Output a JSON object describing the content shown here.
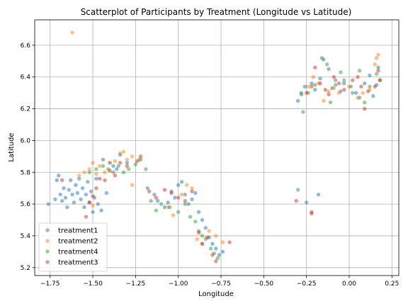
{
  "chart_data": {
    "type": "scatter",
    "title": "Scatterplot of Participants by Treatment (Longitude vs Latitude)",
    "xlabel": "Longitude",
    "ylabel": "Latitude",
    "xlim": [
      -1.84,
      0.29
    ],
    "ylim": [
      5.15,
      6.76
    ],
    "xticks": [
      -1.75,
      -1.5,
      -1.25,
      -1.0,
      -0.75,
      -0.5,
      -0.25,
      0.0,
      0.25
    ],
    "xtick_labels": [
      "−1.75",
      "−1.50",
      "−1.25",
      "−1.00",
      "−0.75",
      "−0.50",
      "−0.25",
      "0.00",
      "0.25"
    ],
    "yticks": [
      5.2,
      5.4,
      5.6,
      5.8,
      6.0,
      6.2,
      6.4,
      6.6
    ],
    "ytick_labels": [
      "5.2",
      "5.4",
      "5.6",
      "5.8",
      "6.0",
      "6.2",
      "6.4",
      "6.6"
    ],
    "grid": true,
    "legend_position": "lower-left",
    "series": [
      {
        "name": "treatment1",
        "color": "#1f77b4",
        "points": [
          [
            -1.76,
            5.6
          ],
          [
            -1.72,
            5.63
          ],
          [
            -1.71,
            5.75
          ],
          [
            -1.7,
            5.78
          ],
          [
            -1.69,
            5.66
          ],
          [
            -1.68,
            5.62
          ],
          [
            -1.67,
            5.7
          ],
          [
            -1.66,
            5.64
          ],
          [
            -1.65,
            5.58
          ],
          [
            -1.64,
            5.69
          ],
          [
            -1.63,
            5.75
          ],
          [
            -1.62,
            5.66
          ],
          [
            -1.61,
            5.61
          ],
          [
            -1.6,
            5.72
          ],
          [
            -1.59,
            5.67
          ],
          [
            -1.58,
            5.76
          ],
          [
            -1.57,
            5.63
          ],
          [
            -1.56,
            5.7
          ],
          [
            -1.55,
            5.58
          ],
          [
            -1.54,
            5.66
          ],
          [
            -1.53,
            5.74
          ],
          [
            -1.52,
            5.61
          ],
          [
            -1.51,
            5.68
          ],
          [
            -1.5,
            5.55
          ],
          [
            -1.49,
            5.64
          ],
          [
            -1.48,
            5.76
          ],
          [
            -1.47,
            5.6
          ],
          [
            -1.45,
            5.56
          ],
          [
            -1.44,
            5.88
          ],
          [
            -1.42,
            5.67
          ],
          [
            -1.4,
            5.86
          ],
          [
            -1.38,
            5.84
          ],
          [
            -1.36,
            5.82
          ],
          [
            -1.34,
            5.91
          ],
          [
            -1.3,
            5.86
          ],
          [
            -1.18,
            5.7
          ],
          [
            -1.14,
            5.66
          ],
          [
            -1.12,
            5.62
          ],
          [
            -1.08,
            5.58
          ],
          [
            -1.06,
            5.61
          ],
          [
            -1.04,
            5.68
          ],
          [
            -1.02,
            5.64
          ],
          [
            -1.0,
            5.72
          ],
          [
            -0.98,
            5.74
          ],
          [
            -0.96,
            5.66
          ],
          [
            -0.94,
            5.6
          ],
          [
            -0.92,
            5.63
          ],
          [
            -0.9,
            5.67
          ],
          [
            -0.88,
            5.55
          ],
          [
            -0.86,
            5.5
          ],
          [
            -0.84,
            5.45
          ],
          [
            -0.82,
            5.39
          ],
          [
            -0.8,
            5.35
          ],
          [
            -0.78,
            5.32
          ],
          [
            -0.76,
            5.28
          ],
          [
            -0.74,
            5.3
          ],
          [
            -0.18,
            5.66
          ],
          [
            -0.25,
            5.61
          ],
          [
            -0.3,
            6.25
          ],
          [
            -0.28,
            6.3
          ],
          [
            -0.26,
            6.34
          ],
          [
            -0.22,
            6.36
          ],
          [
            -0.2,
            6.32
          ],
          [
            -0.17,
            6.39
          ],
          [
            -0.15,
            6.51
          ],
          [
            -0.12,
            6.45
          ],
          [
            -0.1,
            6.33
          ],
          [
            -0.08,
            6.38
          ],
          [
            -0.05,
            6.31
          ],
          [
            -0.03,
            6.36
          ],
          [
            0.01,
            6.34
          ],
          [
            0.04,
            6.3
          ],
          [
            0.06,
            6.27
          ],
          [
            0.09,
            6.36
          ],
          [
            0.12,
            6.41
          ],
          [
            0.14,
            6.28
          ],
          [
            0.16,
            6.35
          ],
          [
            0.17,
            6.46
          ]
        ]
      },
      {
        "name": "treatment2",
        "color": "#ff7f0e",
        "points": [
          [
            -1.62,
            6.68
          ],
          [
            -1.58,
            5.78
          ],
          [
            -1.55,
            5.8
          ],
          [
            -1.52,
            5.82
          ],
          [
            -1.5,
            5.86
          ],
          [
            -1.48,
            5.79
          ],
          [
            -1.46,
            5.84
          ],
          [
            -1.43,
            5.8
          ],
          [
            -1.4,
            5.86
          ],
          [
            -1.37,
            5.87
          ],
          [
            -1.34,
            5.92
          ],
          [
            -1.32,
            5.93
          ],
          [
            -1.3,
            5.88
          ],
          [
            -1.27,
            5.9
          ],
          [
            -1.23,
            5.88
          ],
          [
            -1.27,
            5.72
          ],
          [
            -1.5,
            5.59
          ],
          [
            -1.06,
            5.58
          ],
          [
            -1.03,
            5.53
          ],
          [
            -0.98,
            5.66
          ],
          [
            -0.95,
            5.72
          ],
          [
            -0.92,
            5.7
          ],
          [
            -0.89,
            5.38
          ],
          [
            -0.86,
            5.35
          ],
          [
            -0.82,
            5.43
          ],
          [
            -0.78,
            5.4
          ],
          [
            -0.74,
            5.36
          ],
          [
            -0.24,
            6.34
          ],
          [
            -0.21,
            6.4
          ],
          [
            -0.18,
            6.36
          ],
          [
            -0.15,
            6.25
          ],
          [
            -0.12,
            6.31
          ],
          [
            -0.09,
            6.33
          ],
          [
            -0.06,
            6.3
          ],
          [
            0.0,
            6.34
          ],
          [
            0.05,
            6.27
          ],
          [
            0.08,
            6.3
          ],
          [
            0.12,
            6.32
          ],
          [
            0.15,
            6.48
          ],
          [
            0.16,
            6.52
          ],
          [
            0.17,
            6.54
          ]
        ]
      },
      {
        "name": "treatment4",
        "color": "#2ca02c",
        "points": [
          [
            -1.52,
            5.8
          ],
          [
            -1.48,
            5.82
          ],
          [
            -1.44,
            5.84
          ],
          [
            -1.41,
            5.82
          ],
          [
            -1.38,
            5.8
          ],
          [
            -1.35,
            5.84
          ],
          [
            -1.32,
            5.8
          ],
          [
            -1.29,
            5.82
          ],
          [
            -1.25,
            5.85
          ],
          [
            -1.22,
            5.88
          ],
          [
            -1.19,
            5.82
          ],
          [
            -1.16,
            5.62
          ],
          [
            -1.13,
            5.56
          ],
          [
            -1.1,
            5.6
          ],
          [
            -1.05,
            5.58
          ],
          [
            -1.0,
            5.55
          ],
          [
            -0.96,
            5.6
          ],
          [
            -0.93,
            5.52
          ],
          [
            -0.9,
            5.49
          ],
          [
            -0.88,
            5.43
          ],
          [
            -0.86,
            5.4
          ],
          [
            -0.84,
            5.38
          ],
          [
            -0.81,
            5.32
          ],
          [
            -0.79,
            5.29
          ],
          [
            -0.77,
            5.26
          ],
          [
            -0.3,
            5.69
          ],
          [
            -0.27,
            6.18
          ],
          [
            -0.28,
            6.29
          ],
          [
            -0.24,
            6.3
          ],
          [
            -0.2,
            6.35
          ],
          [
            -0.16,
            6.52
          ],
          [
            -0.13,
            6.48
          ],
          [
            -0.11,
            6.24
          ],
          [
            -0.08,
            6.35
          ],
          [
            -0.05,
            6.43
          ],
          [
            -0.03,
            6.38
          ],
          [
            0.02,
            6.3
          ],
          [
            0.06,
            6.44
          ],
          [
            0.09,
            6.24
          ],
          [
            0.12,
            6.34
          ],
          [
            0.16,
            6.42
          ],
          [
            0.18,
            6.38
          ]
        ]
      },
      {
        "name": "treatment3",
        "color": "#d62728",
        "points": [
          [
            -1.68,
            5.75
          ],
          [
            -1.54,
            5.52
          ],
          [
            -1.52,
            5.61
          ],
          [
            -1.5,
            5.65
          ],
          [
            -1.48,
            5.7
          ],
          [
            -1.46,
            5.76
          ],
          [
            -1.43,
            5.75
          ],
          [
            -1.4,
            5.81
          ],
          [
            -1.37,
            5.78
          ],
          [
            -1.34,
            5.86
          ],
          [
            -1.3,
            5.84
          ],
          [
            -1.24,
            5.87
          ],
          [
            -1.22,
            5.9
          ],
          [
            -1.17,
            5.68
          ],
          [
            -1.13,
            5.64
          ],
          [
            -1.08,
            5.69
          ],
          [
            -1.04,
            5.67
          ],
          [
            -1.0,
            5.64
          ],
          [
            -0.96,
            5.62
          ],
          [
            -0.92,
            5.68
          ],
          [
            -0.88,
            5.42
          ],
          [
            -0.86,
            5.35
          ],
          [
            -0.83,
            5.39
          ],
          [
            -0.8,
            5.28
          ],
          [
            -0.78,
            5.24
          ],
          [
            -0.7,
            5.36
          ],
          [
            -0.31,
            5.62
          ],
          [
            -0.22,
            5.55
          ],
          [
            -0.22,
            5.54
          ],
          [
            -0.25,
            6.3
          ],
          [
            -0.22,
            6.34
          ],
          [
            -0.2,
            6.46
          ],
          [
            -0.17,
            6.36
          ],
          [
            -0.14,
            6.32
          ],
          [
            -0.12,
            6.29
          ],
          [
            -0.09,
            6.4
          ],
          [
            -0.06,
            6.36
          ],
          [
            -0.03,
            6.32
          ],
          [
            0.02,
            6.38
          ],
          [
            0.05,
            6.4
          ],
          [
            0.07,
            6.34
          ],
          [
            0.09,
            6.2
          ],
          [
            0.11,
            6.31
          ],
          [
            0.15,
            6.34
          ],
          [
            0.17,
            6.44
          ],
          [
            0.18,
            6.38
          ]
        ]
      }
    ]
  }
}
